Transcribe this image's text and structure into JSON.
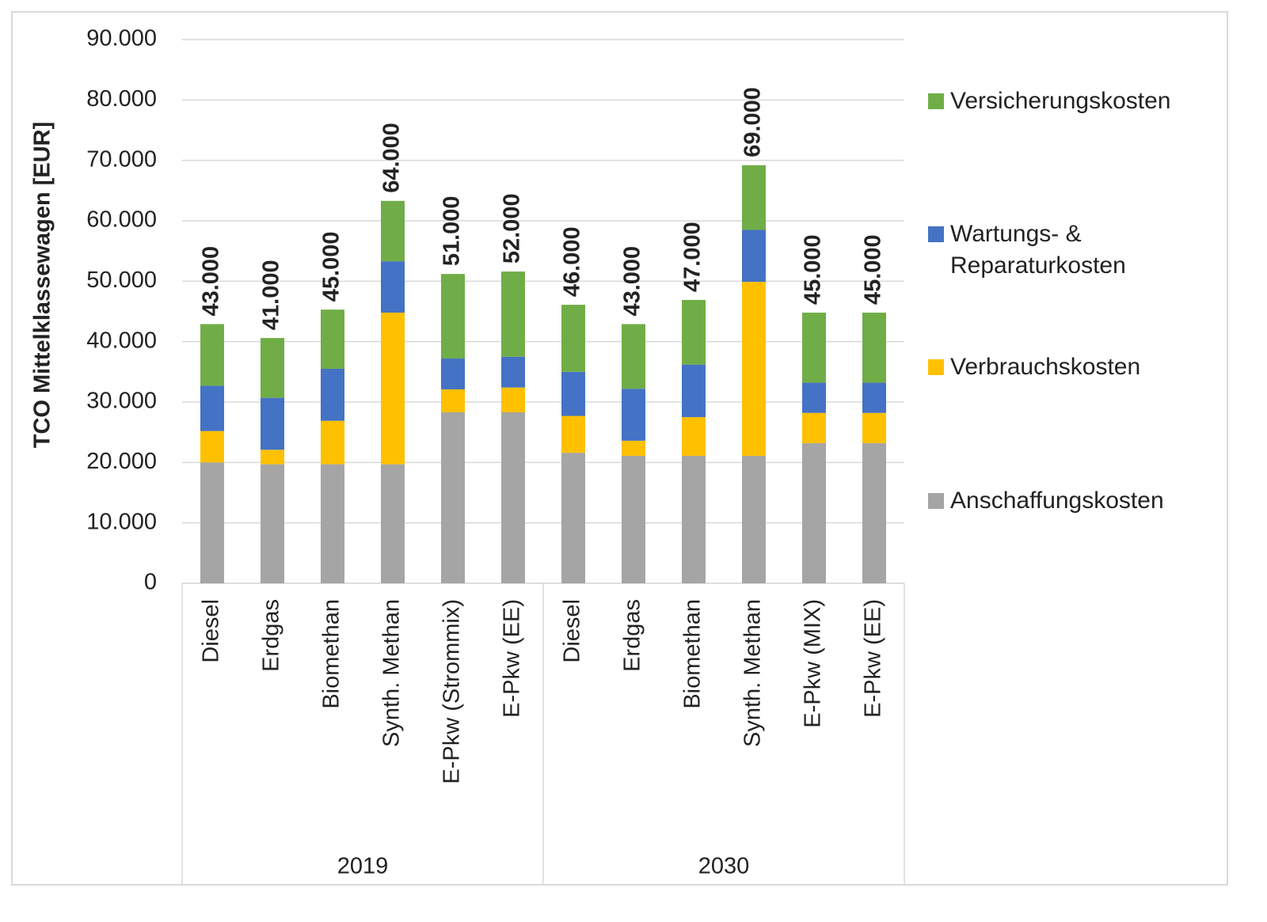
{
  "chart_data": {
    "type": "stacked_bar",
    "y_axis_label": "TCO Mittelklassewagen [EUR]",
    "groups": [
      {
        "name": "2019",
        "categories": [
          "Diesel",
          "Erdgas",
          "Biomethan",
          "Synth. Methan",
          "E-Pkw (Strommix)",
          "E-Pkw (EE)"
        ]
      },
      {
        "name": "2030",
        "categories": [
          "Diesel",
          "Erdgas",
          "Biomethan",
          "Synth. Methan",
          "E-Pkw (MIX)",
          "E-Pkw (EE)"
        ]
      }
    ],
    "series": [
      {
        "name": "Anschaffungskosten",
        "color": "#a5a5a5",
        "values": [
          20000,
          19700,
          19700,
          19700,
          28300,
          28300,
          21600,
          21100,
          21100,
          21100,
          23200,
          23200
        ]
      },
      {
        "name": "Verbrauchskosten",
        "color": "#ffc000",
        "values": [
          5200,
          2400,
          7200,
          25100,
          3800,
          4100,
          6100,
          2500,
          6400,
          28800,
          5000,
          5000
        ]
      },
      {
        "name": "Wartungs- & Reparaturkosten",
        "color": "#4472c4",
        "values": [
          7500,
          8600,
          8600,
          8500,
          5100,
          5100,
          7300,
          8600,
          8700,
          8600,
          5000,
          5000
        ]
      },
      {
        "name": "Versicherungskosten",
        "color": "#70ad47",
        "values": [
          10200,
          9900,
          9800,
          10000,
          14000,
          14100,
          11100,
          10700,
          10700,
          10700,
          11600,
          11600
        ]
      }
    ],
    "totals": {
      "values": [
        43000,
        41000,
        45000,
        64000,
        51000,
        52000,
        46000,
        43000,
        47000,
        69000,
        45000,
        45000
      ],
      "value_labels": [
        "43.000",
        "41.000",
        "45.000",
        "64.000",
        "51.000",
        "52.000",
        "46.000",
        "43.000",
        "47.000",
        "69.000",
        "45.000",
        "45.000"
      ]
    },
    "ylim": [
      0,
      90000
    ],
    "yticks": [
      0,
      {
        "value": 10000,
        "label": "10.000"
      },
      {
        "value": 20000,
        "label": "20.000"
      },
      {
        "value": 30000,
        "label": "30.000"
      },
      {
        "value": 40000,
        "label": "40.000"
      },
      {
        "value": 50000,
        "label": "50.000"
      },
      {
        "value": 60000,
        "label": "60.000"
      },
      {
        "value": 70000,
        "label": "70.000"
      },
      {
        "value": 80000,
        "label": "80.000"
      },
      {
        "value": 90000,
        "label": "90.000"
      }
    ],
    "grid": true,
    "legend": "right"
  }
}
